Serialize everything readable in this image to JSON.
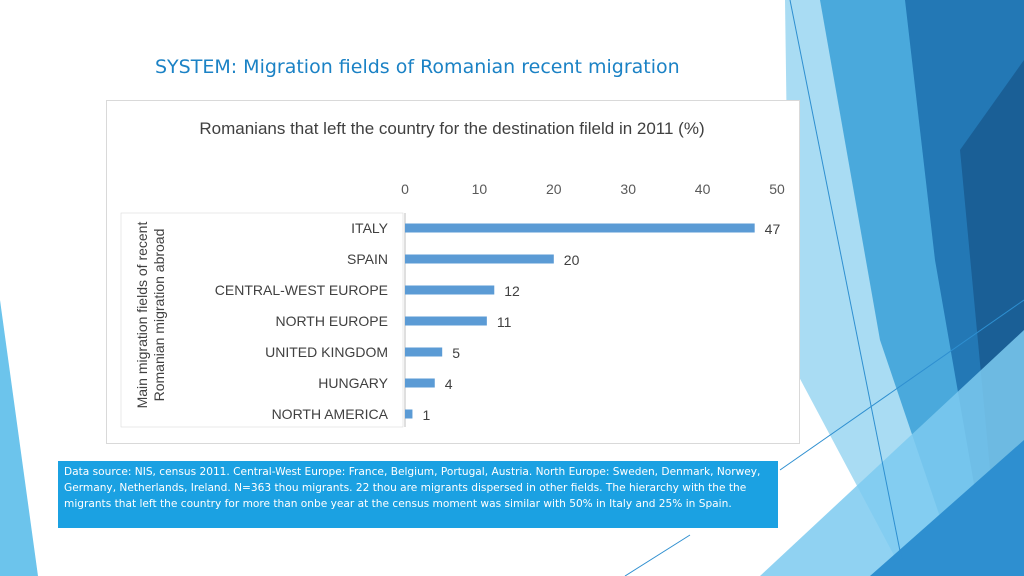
{
  "slide": {
    "title": "SYSTEM: Migration fields of Romanian recent migration",
    "note": "Data source: NIS, census 2011. Central-West Europe: France, Belgium, Portugal, Austria. North Europe: Sweden, Denmark, Norwey, Germany, Netherlands, Ireland. N=363 thou migrants. 22 thou are migrants dispersed in other fields. The hierarchy  with the the migrants that left the country for more than onbe year at the census moment was similar with 50% in Italy and  25% in Spain."
  },
  "colors": {
    "title": "#1b82c5",
    "bar": "#5b9bd5",
    "note_bg": "#1ba1e2",
    "note_text": "#ffffff",
    "deco_dark": "#1f6fa8",
    "deco_mid": "#3a9ad8",
    "deco_light": "#8fd0f0"
  },
  "chart_data": {
    "type": "bar",
    "orientation": "horizontal",
    "title": "Romanians that left the country for the destination fileld  in 2011 (%)",
    "ylabel": "Main migration fields  of recent Romanian migration abroad",
    "xlabel": "",
    "xlim": [
      0,
      50
    ],
    "x_ticks": [
      "0",
      "10",
      "20",
      "30",
      "40",
      "50"
    ],
    "x_tick_values": [
      0,
      10,
      20,
      30,
      40,
      50
    ],
    "x_axis_position": "top",
    "grid": false,
    "legend": "none",
    "categories": [
      "ITALY",
      "SPAIN",
      "CENTRAL-WEST EUROPE",
      "NORTH EUROPE",
      "UNITED KINGDOM",
      "HUNGARY",
      "NORTH AMERICA"
    ],
    "values": [
      47,
      20,
      12,
      11,
      5,
      4,
      1
    ],
    "data_labels": [
      "47",
      "20",
      "12",
      "11",
      "5",
      "4",
      "1"
    ]
  }
}
